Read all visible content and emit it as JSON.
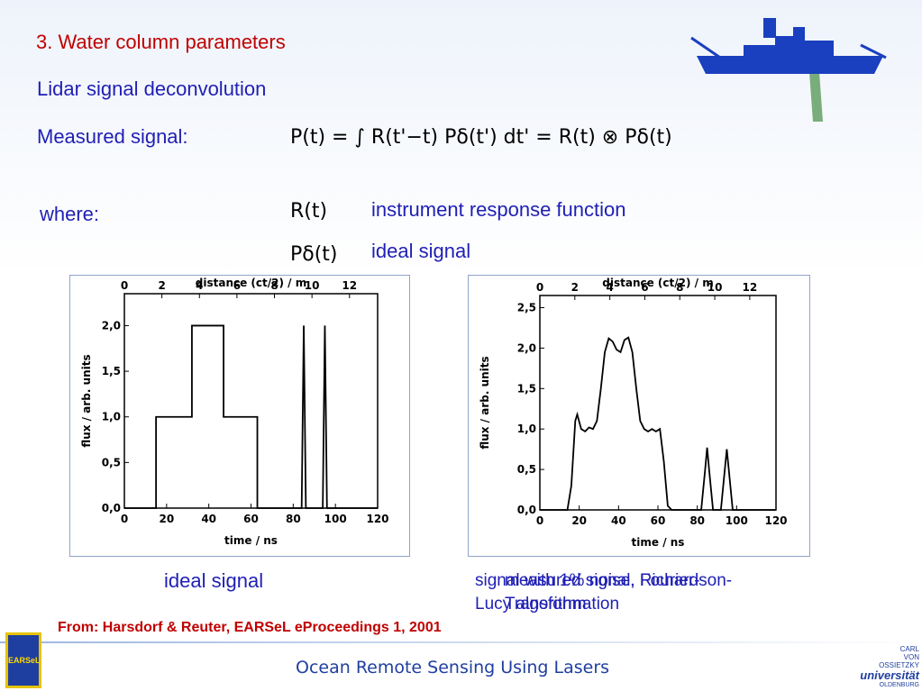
{
  "slide": {
    "heading": "3. Water column parameters",
    "subheading": "Lidar signal deconvolution",
    "measured_label": "Measured signal:",
    "formula": "P(t) = ∫ R(t'−t) Pδ(t') dt' = R(t) ⊗ Pδ(t)",
    "where_label": "where:",
    "terms": [
      {
        "symbol": "R(t)",
        "meaning": "instrument response function"
      },
      {
        "symbol": "Pδ(t)",
        "meaning": "ideal signal"
      }
    ],
    "captions": [
      "ideal signal",
      "signal with 1% noise, Richardson-Lucy algorithm",
      "measured signal, Fourier-Transformation"
    ],
    "source": "From: Harsdorf & Reuter, EARSeL eProceedings 1, 2001",
    "footer": "Ocean Remote Sensing Using Lasers",
    "logo_left": "EARSeL",
    "logo_right": [
      "CARL",
      "VON",
      "OSSIETZKY",
      "universität",
      "OLDENBURG"
    ]
  },
  "chart_data": [
    {
      "type": "line",
      "x_label": "time / ns",
      "y_label": "flux / arb. units",
      "x2_label": "distance (ct/2)  /  m",
      "color": "#000000",
      "x": [
        0,
        15,
        15,
        32,
        32,
        47,
        47,
        63,
        63,
        84,
        85,
        86,
        94,
        95,
        96,
        120
      ],
      "values": [
        0,
        0,
        1,
        1,
        2,
        2,
        1,
        1,
        0,
        0,
        2,
        0,
        0,
        2,
        0,
        0
      ],
      "xlim": [
        0,
        120
      ],
      "xticks": [
        0,
        20,
        40,
        60,
        80,
        100,
        120
      ],
      "x2lim": [
        0,
        13.5
      ],
      "x2ticks": [
        0,
        2,
        4,
        6,
        8,
        10,
        12
      ],
      "ylim": [
        0,
        2.35
      ],
      "yticks": [
        {
          "value": 0,
          "label": "0,0"
        },
        {
          "value": 0.5,
          "label": "0,5"
        },
        {
          "value": 1,
          "label": "1,0"
        },
        {
          "value": 1.5,
          "label": "1,5"
        },
        {
          "value": 2,
          "label": "2,0"
        }
      ]
    },
    {
      "type": "line",
      "x_label": "time / ns",
      "y_label": "flux / arb. units",
      "x2_label": "distance (ct/2)  /  m",
      "color": "#000000",
      "x": [
        0,
        14,
        16,
        18,
        19,
        21,
        23,
        25,
        27,
        29,
        31,
        33,
        35,
        37,
        39,
        41,
        43,
        45,
        47,
        49,
        51,
        53,
        55,
        57,
        59,
        61,
        63,
        65,
        67,
        82,
        84,
        85,
        86,
        88,
        92,
        94,
        95,
        96,
        98,
        120
      ],
      "values": [
        0,
        0,
        0.3,
        1.1,
        1.18,
        1.0,
        0.97,
        1.02,
        1.0,
        1.1,
        1.5,
        1.95,
        2.12,
        2.08,
        1.98,
        1.95,
        2.1,
        2.13,
        1.95,
        1.5,
        1.1,
        1.0,
        0.97,
        1.0,
        0.97,
        1.0,
        0.6,
        0.05,
        0,
        0,
        0.5,
        0.77,
        0.5,
        0,
        0,
        0.5,
        0.75,
        0.5,
        0,
        0
      ],
      "xlim": [
        0,
        120
      ],
      "xticks": [
        0,
        20,
        40,
        60,
        80,
        100,
        120
      ],
      "x2lim": [
        0,
        13.5
      ],
      "x2ticks": [
        0,
        2,
        4,
        6,
        8,
        10,
        12
      ],
      "ylim": [
        0,
        2.65
      ],
      "yticks": [
        {
          "value": 0,
          "label": "0,0"
        },
        {
          "value": 0.5,
          "label": "0,5"
        },
        {
          "value": 1,
          "label": "1,0"
        },
        {
          "value": 1.5,
          "label": "1,5"
        },
        {
          "value": 2,
          "label": "2,0"
        },
        {
          "value": 2.5,
          "label": "2,5"
        }
      ]
    }
  ]
}
